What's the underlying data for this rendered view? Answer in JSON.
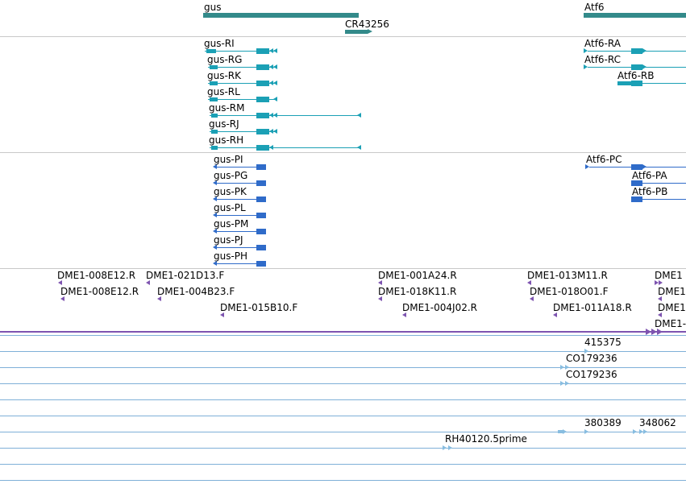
{
  "colors": {
    "gene": "#338a8a",
    "transcript": "#1ba0b5",
    "protein": "#2f6bc9",
    "marker": "#7e54b0",
    "est": "#88bde0",
    "separator": "#c8c8c8"
  },
  "genes": [
    {
      "label": "gus"
    },
    {
      "label": "CR43256"
    },
    {
      "label": "Atf6"
    }
  ],
  "transcripts": [
    {
      "label": "gus-RI"
    },
    {
      "label": "gus-RG"
    },
    {
      "label": "gus-RK"
    },
    {
      "label": "gus-RL"
    },
    {
      "label": "gus-RM"
    },
    {
      "label": "gus-RJ"
    },
    {
      "label": "gus-RH"
    },
    {
      "label": "Atf6-RA"
    },
    {
      "label": "Atf6-RC"
    },
    {
      "label": "Atf6-RB"
    }
  ],
  "proteins": [
    {
      "label": "gus-PI"
    },
    {
      "label": "gus-PG"
    },
    {
      "label": "gus-PK"
    },
    {
      "label": "gus-PL"
    },
    {
      "label": "gus-PM"
    },
    {
      "label": "gus-PJ"
    },
    {
      "label": "gus-PH"
    },
    {
      "label": "Atf6-PC"
    },
    {
      "label": "Atf6-PA"
    },
    {
      "label": "Atf6-PB"
    }
  ],
  "markers": [
    {
      "label": "DME1-008E12.R"
    },
    {
      "label": "DME1-008E12.R"
    },
    {
      "label": "DME1-021D13.F"
    },
    {
      "label": "DME1-004B23.F"
    },
    {
      "label": "DME1-015B10.F"
    },
    {
      "label": "DME1-001A24.R"
    },
    {
      "label": "DME1-018K11.R"
    },
    {
      "label": "DME1-004J02.R"
    },
    {
      "label": "DME1-013M11.R"
    },
    {
      "label": "DME1-018O01.F"
    },
    {
      "label": "DME1-011A18.R"
    },
    {
      "label": "DME1"
    },
    {
      "label": "DME1"
    },
    {
      "label": "DME1"
    },
    {
      "label": "DME1-"
    }
  ],
  "ests": [
    {
      "label": "415375"
    },
    {
      "label": "CO179236"
    },
    {
      "label": "CO179236"
    },
    {
      "label": "380389"
    },
    {
      "label": "348062"
    },
    {
      "label": "RH40120.5prime"
    }
  ]
}
